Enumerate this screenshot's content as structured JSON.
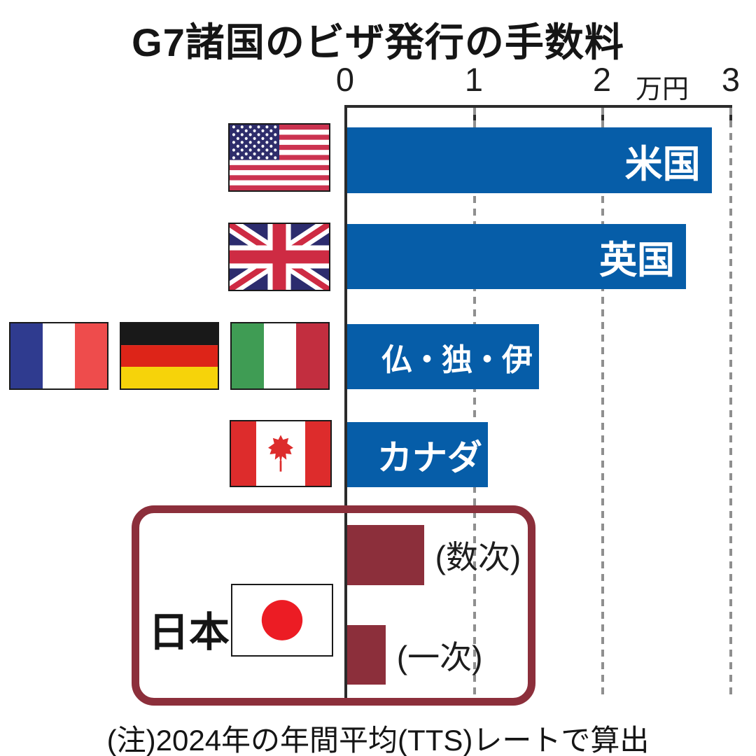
{
  "title": "G7諸国のビザ発行の手数料",
  "footer_note": "(注)2024年の年間平均(TTS)レートで算出",
  "axis": {
    "ticks": [
      "0",
      "1",
      "2",
      "3"
    ],
    "unit_label": "万円",
    "max": 3
  },
  "colors": {
    "bar_blue": "#065DA8",
    "japan_maroon": "#8C2F3B",
    "grid_gray": "#8F8F8F",
    "axis_black": "#2B2B2B",
    "japan_flag_red": "#EC1C24"
  },
  "rows": [
    {
      "label": "米国",
      "value": 2.85,
      "flags": [
        "us"
      ]
    },
    {
      "label": "英国",
      "value": 2.65,
      "flags": [
        "uk"
      ]
    },
    {
      "label": "仏・独・伊",
      "value": 1.5,
      "flags": [
        "fr",
        "de",
        "it"
      ]
    },
    {
      "label": "カナダ",
      "value": 1.1,
      "flags": [
        "ca"
      ]
    }
  ],
  "japan": {
    "label": "日本",
    "bars": [
      {
        "label": "(数次)",
        "value": 0.6
      },
      {
        "label": "(一次)",
        "value": 0.3
      }
    ]
  },
  "chart_data": {
    "type": "bar",
    "orientation": "horizontal",
    "title": "G7諸国のビザ発行の手数料",
    "categories": [
      "米国",
      "英国",
      "仏・独・伊",
      "カナダ",
      "日本（数次）",
      "日本（一次）"
    ],
    "values": [
      2.85,
      2.65,
      1.5,
      1.1,
      0.6,
      0.3
    ],
    "unit": "万円",
    "xlabel": "万円",
    "xlim": [
      0,
      3
    ],
    "xticks": [
      0,
      1,
      2,
      3
    ],
    "grid": "dashed-vertical",
    "annotations": [
      "(注)2024年の年間平均(TTS)レートで算出"
    ],
    "bar_colors": [
      "#065DA8",
      "#065DA8",
      "#065DA8",
      "#065DA8",
      "#8C2F3B",
      "#8C2F3B"
    ]
  }
}
